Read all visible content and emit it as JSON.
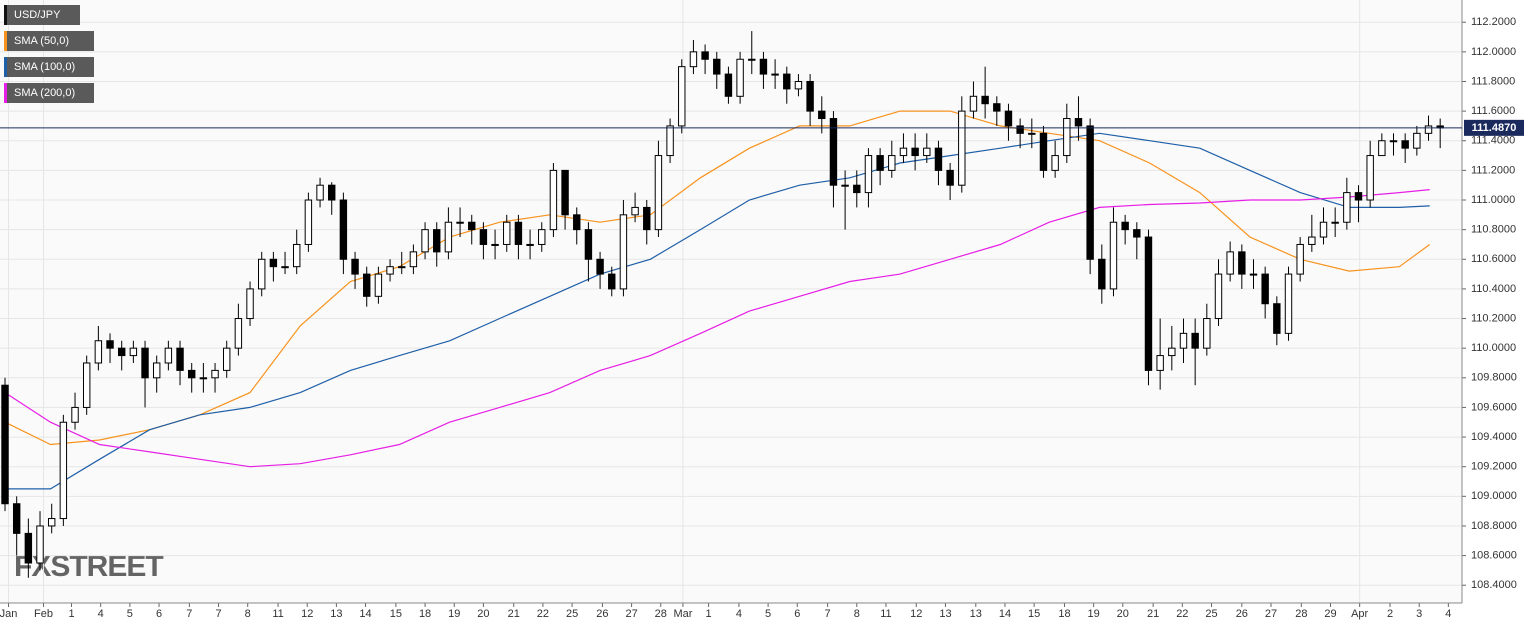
{
  "chart_data": {
    "type": "candlestick",
    "watermark": "FXSTREET",
    "up_color": "#ffffff",
    "down_color": "#000000",
    "grid": true,
    "ylim": [
      108.28,
      112.35
    ],
    "yticks": [
      {
        "value": 108.4,
        "label": "108.4000"
      },
      {
        "value": 108.6,
        "label": "108.6000"
      },
      {
        "value": 108.8,
        "label": "108.8000"
      },
      {
        "value": 109.0,
        "label": "109.0000"
      },
      {
        "value": 109.2,
        "label": "109.2000"
      },
      {
        "value": 109.4,
        "label": "109.4000"
      },
      {
        "value": 109.6,
        "label": "109.6000"
      },
      {
        "value": 109.8,
        "label": "109.8000"
      },
      {
        "value": 110.0,
        "label": "110.0000"
      },
      {
        "value": 110.2,
        "label": "110.2000"
      },
      {
        "value": 110.4,
        "label": "110.4000"
      },
      {
        "value": 110.6,
        "label": "110.6000"
      },
      {
        "value": 110.8,
        "label": "110.8000"
      },
      {
        "value": 111.0,
        "label": "111.0000"
      },
      {
        "value": 111.2,
        "label": "111.2000"
      },
      {
        "value": 111.4,
        "label": "111.4000"
      },
      {
        "value": 111.6,
        "label": "111.6000"
      },
      {
        "value": 111.8,
        "label": "111.8000"
      },
      {
        "value": 112.0,
        "label": "112.0000"
      },
      {
        "value": 112.2,
        "label": "112.2000"
      }
    ],
    "xlim": [
      -0.43,
      124.87
    ],
    "xticks": [
      {
        "value": 0.3,
        "label": "Jan"
      },
      {
        "value": 3.3,
        "label": "Feb"
      },
      {
        "value": 5.7,
        "label": "1"
      },
      {
        "value": 8.2,
        "label": "4"
      },
      {
        "value": 10.7,
        "label": "5"
      },
      {
        "value": 13.2,
        "label": "6"
      },
      {
        "value": 15.8,
        "label": "7"
      },
      {
        "value": 18.3,
        "label": "7"
      },
      {
        "value": 20.8,
        "label": "8"
      },
      {
        "value": 23.4,
        "label": "11"
      },
      {
        "value": 25.9,
        "label": "12"
      },
      {
        "value": 28.4,
        "label": "13"
      },
      {
        "value": 30.9,
        "label": "14"
      },
      {
        "value": 33.5,
        "label": "15"
      },
      {
        "value": 36.0,
        "label": "18"
      },
      {
        "value": 38.5,
        "label": "19"
      },
      {
        "value": 41.0,
        "label": "20"
      },
      {
        "value": 43.6,
        "label": "21"
      },
      {
        "value": 46.1,
        "label": "22"
      },
      {
        "value": 48.6,
        "label": "25"
      },
      {
        "value": 51.2,
        "label": "26"
      },
      {
        "value": 53.7,
        "label": "27"
      },
      {
        "value": 56.2,
        "label": "28"
      },
      {
        "value": 58.1,
        "label": "Mar"
      },
      {
        "value": 60.3,
        "label": "1"
      },
      {
        "value": 62.9,
        "label": "4"
      },
      {
        "value": 65.4,
        "label": "5"
      },
      {
        "value": 67.9,
        "label": "6"
      },
      {
        "value": 70.5,
        "label": "7"
      },
      {
        "value": 73.0,
        "label": "8"
      },
      {
        "value": 75.5,
        "label": "11"
      },
      {
        "value": 78.1,
        "label": "12"
      },
      {
        "value": 80.6,
        "label": "13"
      },
      {
        "value": 83.2,
        "label": "13"
      },
      {
        "value": 85.7,
        "label": "14"
      },
      {
        "value": 88.2,
        "label": "15"
      },
      {
        "value": 90.8,
        "label": "18"
      },
      {
        "value": 93.3,
        "label": "19"
      },
      {
        "value": 95.8,
        "label": "20"
      },
      {
        "value": 98.4,
        "label": "21"
      },
      {
        "value": 100.9,
        "label": "22"
      },
      {
        "value": 103.4,
        "label": "25"
      },
      {
        "value": 106.0,
        "label": "26"
      },
      {
        "value": 108.5,
        "label": "27"
      },
      {
        "value": 111.1,
        "label": "28"
      },
      {
        "value": 113.6,
        "label": "29"
      },
      {
        "value": 116.1,
        "label": "Apr"
      },
      {
        "value": 118.7,
        "label": "2"
      },
      {
        "value": 121.2,
        "label": "3"
      },
      {
        "value": 123.7,
        "label": "4"
      }
    ],
    "last_price": {
      "value": 111.487,
      "label": "111.4870"
    },
    "series": [
      {
        "name": "USD/JPY",
        "color": "#000000",
        "open": [
          109.75,
          108.95,
          108.75,
          108.55,
          108.8,
          108.85,
          109.5,
          109.6,
          109.9,
          110.05,
          110.0,
          109.95,
          110.0,
          109.8,
          109.9,
          110.0,
          109.85,
          109.8,
          109.8,
          109.85,
          110.0,
          110.2,
          110.4,
          110.6,
          110.55,
          110.55,
          110.7,
          111.0,
          111.1,
          111.0,
          110.6,
          110.5,
          110.35,
          110.5,
          110.55,
          110.55,
          110.65,
          110.8,
          110.65,
          110.85,
          110.85,
          110.8,
          110.7,
          110.7,
          110.85,
          110.7,
          110.7,
          110.8,
          111.2,
          110.9,
          110.8,
          110.6,
          110.5,
          110.4,
          110.9,
          110.95,
          110.8,
          111.3,
          111.5,
          111.9,
          112.0,
          111.95,
          111.85,
          111.7,
          111.95,
          111.95,
          111.85,
          111.85,
          111.75,
          111.8,
          111.6,
          111.55,
          111.1,
          111.1,
          111.05,
          111.3,
          111.2,
          111.3,
          111.35,
          111.3,
          111.35,
          111.2,
          111.1,
          111.6,
          111.7,
          111.65,
          111.6,
          111.5,
          111.45,
          111.45,
          111.2,
          111.3,
          111.55,
          111.5,
          110.6,
          110.4,
          110.85,
          110.8,
          110.75,
          109.85,
          109.95,
          110.0,
          110.1,
          110.0,
          110.2,
          110.5,
          110.65,
          110.5,
          110.5,
          110.3,
          110.1,
          110.5,
          110.7,
          110.75,
          110.85,
          110.85,
          111.05,
          111.0,
          111.3,
          111.4,
          111.4,
          111.35,
          111.45,
          111.5
        ],
        "high": [
          109.8,
          109.0,
          108.85,
          108.9,
          108.95,
          109.55,
          109.7,
          109.95,
          110.15,
          110.1,
          110.05,
          110.05,
          110.05,
          109.95,
          110.05,
          110.05,
          109.9,
          109.9,
          109.9,
          110.05,
          110.3,
          110.45,
          110.65,
          110.65,
          110.65,
          110.8,
          111.05,
          111.15,
          111.12,
          111.05,
          110.65,
          110.55,
          110.55,
          110.6,
          110.65,
          110.7,
          110.85,
          110.85,
          110.95,
          110.95,
          110.9,
          110.85,
          110.8,
          110.9,
          110.9,
          110.8,
          110.85,
          111.25,
          111.2,
          110.95,
          110.85,
          110.65,
          110.55,
          111.0,
          111.05,
          111.0,
          111.4,
          111.55,
          111.95,
          112.08,
          112.05,
          112.0,
          111.9,
          112.0,
          112.14,
          112.0,
          111.95,
          111.9,
          111.85,
          111.85,
          111.7,
          111.6,
          111.2,
          111.2,
          111.35,
          111.35,
          111.4,
          111.45,
          111.45,
          111.45,
          111.4,
          111.25,
          111.7,
          111.8,
          111.9,
          111.7,
          111.65,
          111.55,
          111.55,
          111.5,
          111.4,
          111.65,
          111.7,
          111.55,
          110.7,
          110.95,
          110.9,
          110.85,
          110.8,
          110.2,
          110.15,
          110.2,
          110.2,
          110.3,
          110.6,
          110.72,
          110.7,
          110.6,
          110.55,
          110.35,
          110.55,
          110.75,
          110.9,
          110.95,
          110.95,
          111.15,
          111.1,
          111.4,
          111.45,
          111.45,
          111.45,
          111.5,
          111.57,
          111.55
        ],
        "low": [
          108.9,
          108.6,
          108.45,
          108.5,
          108.75,
          108.8,
          109.45,
          109.55,
          109.85,
          109.9,
          109.85,
          109.9,
          109.6,
          109.7,
          109.85,
          109.75,
          109.7,
          109.7,
          109.7,
          109.8,
          109.95,
          110.15,
          110.35,
          110.45,
          110.5,
          110.5,
          110.65,
          110.95,
          110.9,
          110.5,
          110.4,
          110.28,
          110.3,
          110.45,
          110.5,
          110.5,
          110.6,
          110.55,
          110.6,
          110.75,
          110.7,
          110.6,
          110.6,
          110.65,
          110.6,
          110.6,
          110.65,
          110.75,
          110.8,
          110.7,
          110.45,
          110.4,
          110.35,
          110.35,
          110.85,
          110.7,
          110.75,
          111.25,
          111.45,
          111.85,
          111.85,
          111.75,
          111.65,
          111.65,
          111.85,
          111.75,
          111.75,
          111.65,
          111.7,
          111.5,
          111.45,
          110.95,
          110.8,
          110.95,
          110.95,
          111.1,
          111.15,
          111.25,
          111.2,
          111.25,
          111.1,
          111.0,
          111.05,
          111.55,
          111.55,
          111.5,
          111.4,
          111.35,
          111.35,
          111.15,
          111.15,
          111.25,
          111.4,
          110.5,
          110.3,
          110.35,
          110.7,
          110.6,
          109.75,
          109.72,
          109.85,
          109.9,
          109.75,
          109.95,
          110.15,
          110.45,
          110.4,
          110.4,
          110.2,
          110.02,
          110.05,
          110.45,
          110.65,
          110.7,
          110.75,
          110.8,
          110.85,
          110.95,
          111.3,
          111.3,
          111.25,
          111.3,
          111.4,
          111.35
        ],
        "close": [
          108.95,
          108.75,
          108.55,
          108.8,
          108.85,
          109.5,
          109.6,
          109.9,
          110.05,
          110.0,
          109.95,
          110.0,
          109.8,
          109.9,
          110.0,
          109.85,
          109.8,
          109.8,
          109.85,
          110.0,
          110.2,
          110.4,
          110.6,
          110.55,
          110.55,
          110.7,
          111.0,
          111.1,
          111.0,
          110.6,
          110.5,
          110.35,
          110.5,
          110.55,
          110.55,
          110.65,
          110.8,
          110.65,
          110.85,
          110.85,
          110.8,
          110.7,
          110.7,
          110.85,
          110.7,
          110.7,
          110.8,
          111.2,
          110.9,
          110.8,
          110.6,
          110.5,
          110.4,
          110.9,
          110.95,
          110.8,
          111.3,
          111.5,
          111.9,
          112.0,
          111.95,
          111.85,
          111.7,
          111.95,
          111.95,
          111.85,
          111.85,
          111.75,
          111.8,
          111.6,
          111.55,
          111.1,
          111.1,
          111.05,
          111.3,
          111.2,
          111.3,
          111.35,
          111.3,
          111.35,
          111.2,
          111.1,
          111.6,
          111.7,
          111.65,
          111.6,
          111.5,
          111.45,
          111.45,
          111.2,
          111.3,
          111.55,
          111.5,
          110.6,
          110.4,
          110.85,
          110.8,
          110.75,
          109.85,
          109.95,
          110.0,
          110.1,
          110.0,
          110.2,
          110.5,
          110.65,
          110.5,
          110.5,
          110.3,
          110.1,
          110.5,
          110.7,
          110.75,
          110.85,
          110.85,
          111.05,
          111.0,
          111.3,
          111.4,
          111.4,
          111.35,
          111.45,
          111.5,
          111.487
        ]
      },
      {
        "name": "SMA (50,0)",
        "color": "#f7931e",
        "x": [
          0,
          3.9,
          8.1,
          12.4,
          16.7,
          21.0,
          25.3,
          29.6,
          33.8,
          38.1,
          42.4,
          46.7,
          51.0,
          55.3,
          59.6,
          63.8,
          68.1,
          72.4,
          76.7,
          81.0,
          85.3,
          89.5,
          93.8,
          98.1,
          102.4,
          106.7,
          111.0,
          115.2,
          119.5,
          122.1
        ],
        "values": [
          109.5,
          109.35,
          109.38,
          109.45,
          109.55,
          109.7,
          110.15,
          110.45,
          110.55,
          110.75,
          110.85,
          110.9,
          110.85,
          110.9,
          111.15,
          111.35,
          111.5,
          111.5,
          111.6,
          111.6,
          111.5,
          111.45,
          111.4,
          111.25,
          111.05,
          110.75,
          110.6,
          110.52,
          110.55,
          110.7
        ]
      },
      {
        "name": "SMA (100,0)",
        "color": "#1f5fa8",
        "x": [
          0,
          3.9,
          8.1,
          12.4,
          16.7,
          21.0,
          25.3,
          29.6,
          33.8,
          38.1,
          42.4,
          46.7,
          51.0,
          55.3,
          59.6,
          63.8,
          68.1,
          72.4,
          76.7,
          81.0,
          85.3,
          89.5,
          93.8,
          98.1,
          102.4,
          106.7,
          111.0,
          115.2,
          119.5,
          122.1
        ],
        "values": [
          109.05,
          109.05,
          109.25,
          109.45,
          109.55,
          109.6,
          109.7,
          109.85,
          109.95,
          110.05,
          110.2,
          110.35,
          110.5,
          110.6,
          110.8,
          111.0,
          111.1,
          111.15,
          111.25,
          111.3,
          111.35,
          111.4,
          111.45,
          111.4,
          111.35,
          111.2,
          111.05,
          110.95,
          110.95,
          110.96
        ]
      },
      {
        "name": "SMA (200,0)",
        "color": "#e61ee6",
        "x": [
          0,
          3.9,
          8.1,
          12.4,
          16.7,
          21.0,
          25.3,
          29.6,
          33.8,
          38.1,
          42.4,
          46.7,
          51.0,
          55.3,
          59.6,
          63.8,
          68.1,
          72.4,
          76.7,
          81.0,
          85.3,
          89.5,
          93.8,
          98.1,
          102.4,
          106.7,
          111.0,
          115.2,
          119.5,
          122.1
        ],
        "values": [
          109.7,
          109.5,
          109.35,
          109.3,
          109.25,
          109.2,
          109.22,
          109.28,
          109.35,
          109.5,
          109.6,
          109.7,
          109.85,
          109.95,
          110.1,
          110.25,
          110.35,
          110.45,
          110.5,
          110.6,
          110.7,
          110.85,
          110.95,
          110.97,
          110.98,
          111.0,
          111.0,
          111.02,
          111.05,
          111.07
        ]
      }
    ]
  }
}
